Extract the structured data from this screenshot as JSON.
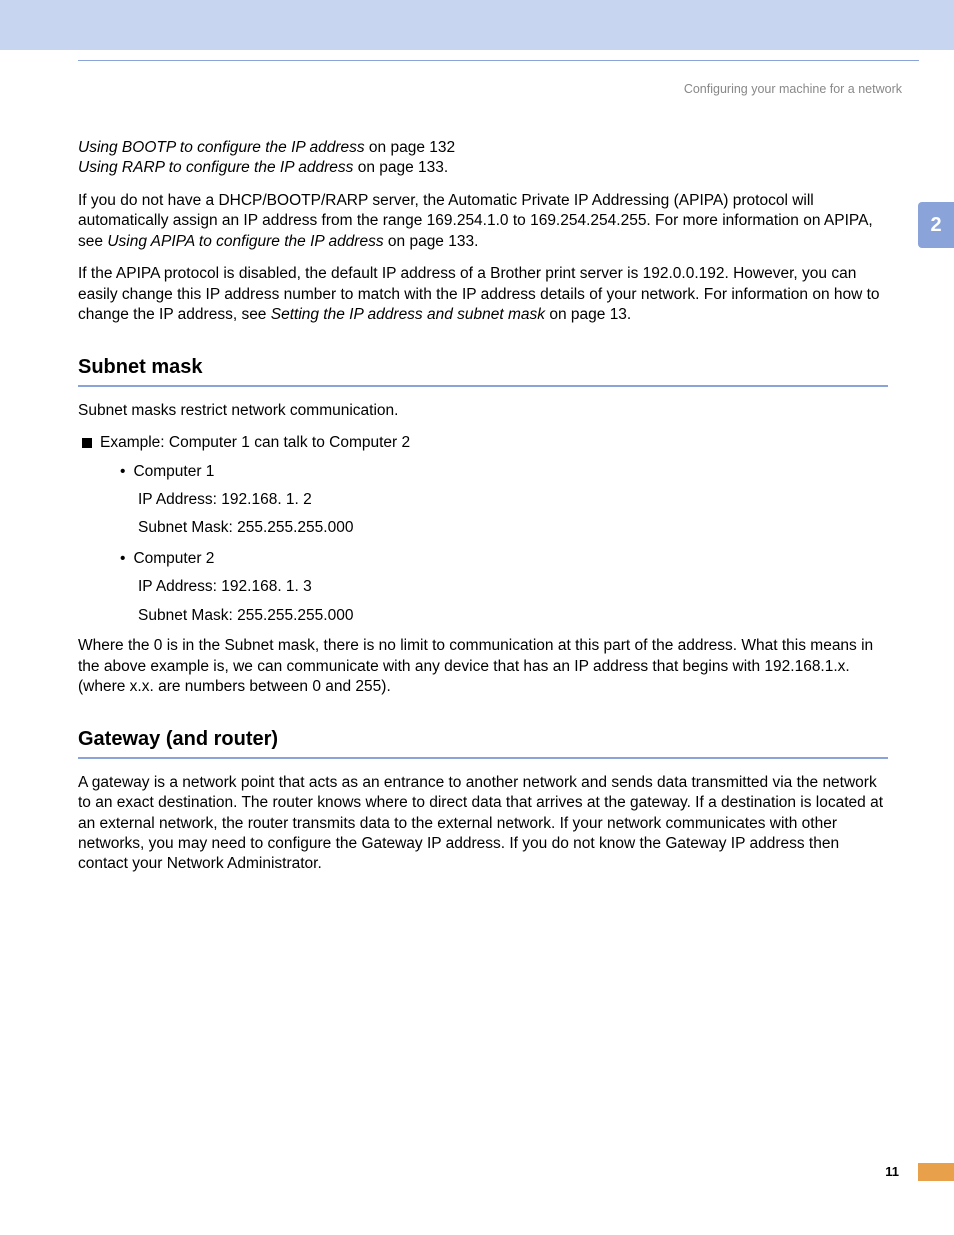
{
  "header": {
    "breadcrumb": "Configuring your machine for a network",
    "chapter": "2",
    "page_number": "11"
  },
  "intro": {
    "line1a": "Using BOOTP to configure the IP address",
    "line1b": " on page 132",
    "line2a": "Using RARP to configure the IP address",
    "line2b": " on page 133.",
    "p1a": "If you do not have a DHCP/BOOTP/RARP server, the Automatic Private IP Addressing (APIPA) protocol will automatically assign an IP address from the range 169.254.1.0 to 169.254.254.255. For more information on APIPA, see ",
    "p1b": "Using APIPA to configure the IP address",
    "p1c": " on page 133.",
    "p2a": "If the APIPA protocol is disabled, the default IP address of a Brother print server is 192.0.0.192. However, you can easily change this IP address number to match with the IP address details of your network. For information on how to change the IP address, see ",
    "p2b": "Setting the IP address and subnet mask",
    "p2c": " on page 13."
  },
  "subnet": {
    "title": "Subnet mask",
    "p1": "Subnet masks restrict network communication.",
    "example_lead": "Example: Computer 1 can talk to Computer 2",
    "c1_label": "Computer 1",
    "c1_ip": "IP Address: 192.168.  1.  2",
    "c1_mask": "Subnet Mask: 255.255.255.000",
    "c2_label": "Computer 2",
    "c2_ip": "IP Address: 192.168.  1.  3",
    "c2_mask": "Subnet Mask: 255.255.255.000",
    "p2": "Where the 0 is in the Subnet mask, there is no limit to communication at this part of the address. What this means in the above example is, we can communicate with any device that has an IP address that begins with 192.168.1.x. (where x.x. are numbers between 0 and 255)."
  },
  "gateway": {
    "title": "Gateway (and router)",
    "p1": "A gateway is a network point that acts as an entrance to another network and sends data transmitted via the network to an exact destination. The router knows where to direct data that arrives at the gateway. If a destination is located at an external network, the router transmits data to the external network. If your network communicates with other networks, you may need to configure the Gateway IP address. If you do not know the Gateway IP address then contact your Network Administrator."
  },
  "colors": {
    "top_bar": "#c8d5f0",
    "accent_blue": "#8aa3d8",
    "tab_orange": "#e8a04a",
    "header_grey": "#888888"
  }
}
